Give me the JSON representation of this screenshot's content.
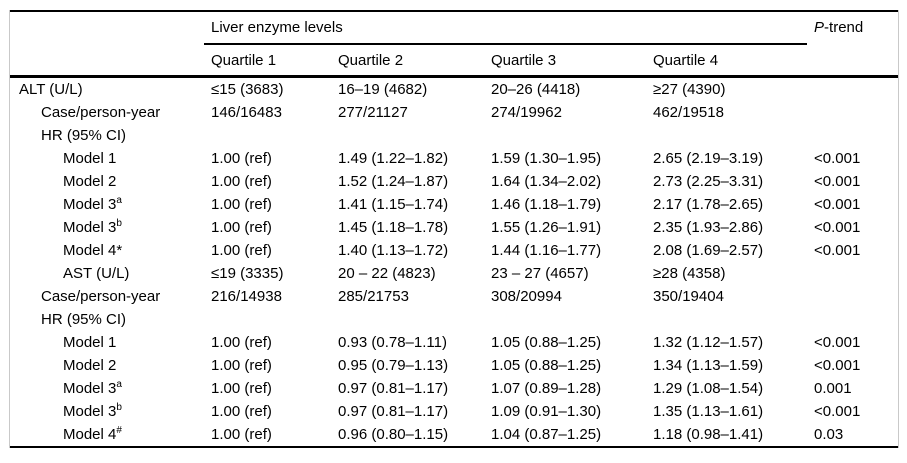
{
  "table": {
    "spanner_header": "Liver enzyme levels",
    "p_trend": {
      "italic": "P",
      "rest": "-trend"
    },
    "quartile_headers": [
      "Quartile 1",
      "Quartile 2",
      "Quartile 3",
      "Quartile 4"
    ],
    "rows": [
      {
        "indent": 0,
        "label": "ALT (U/L)",
        "q1": "≤15 (3683)",
        "q2": "16–19 (4682)",
        "q3": "20–26 (4418)",
        "q4": "≥27 (4390)",
        "p": ""
      },
      {
        "indent": 1,
        "label": "Case/person-year",
        "q1": "146/16483",
        "q2": "277/21127",
        "q3": "274/19962",
        "q4": "462/19518",
        "p": ""
      },
      {
        "indent": 1,
        "label": "HR (95% CI)",
        "q1": "",
        "q2": "",
        "q3": "",
        "q4": "",
        "p": ""
      },
      {
        "indent": 2,
        "label": "Model 1",
        "q1": "1.00 (ref)",
        "q2": "1.49 (1.22–1.82)",
        "q3": "1.59 (1.30–1.95)",
        "q4": "2.65 (2.19–3.19)",
        "p": "<0.001"
      },
      {
        "indent": 2,
        "label": "Model 2",
        "q1": "1.00 (ref)",
        "q2": "1.52 (1.24–1.87)",
        "q3": "1.64 (1.34–2.02)",
        "q4": "2.73 (2.25–3.31)",
        "p": "<0.001"
      },
      {
        "indent": 2,
        "label": "Model 3",
        "sup": "a",
        "q1": "1.00 (ref)",
        "q2": "1.41 (1.15–1.74)",
        "q3": "1.46 (1.18–1.79)",
        "q4": "2.17 (1.78–2.65)",
        "p": "<0.001"
      },
      {
        "indent": 2,
        "label": "Model 3",
        "sup": "b",
        "q1": "1.00 (ref)",
        "q2": "1.45 (1.18–1.78)",
        "q3": "1.55 (1.26–1.91)",
        "q4": "2.35 (1.93–2.86)",
        "p": "<0.001"
      },
      {
        "indent": 2,
        "label": "Model 4*",
        "q1": "1.00 (ref)",
        "q2": "1.40 (1.13–1.72)",
        "q3": "1.44 (1.16–1.77)",
        "q4": "2.08 (1.69–2.57)",
        "p": "<0.001"
      },
      {
        "indent": 2,
        "label": "AST (U/L)",
        "q1": "≤19 (3335)",
        "q2": "20 – 22 (4823)",
        "q3": "23 – 27 (4657)",
        "q4": "≥28 (4358)",
        "p": ""
      },
      {
        "indent": 1,
        "label": "Case/person-year",
        "q1": "216/14938",
        "q2": "285/21753",
        "q3": "308/20994",
        "q4": "350/19404",
        "p": ""
      },
      {
        "indent": 1,
        "label": "HR (95% CI)",
        "q1": "",
        "q2": "",
        "q3": "",
        "q4": "",
        "p": ""
      },
      {
        "indent": 2,
        "label": "Model 1",
        "q1": "1.00 (ref)",
        "q2": "0.93 (0.78–1.11)",
        "q3": "1.05 (0.88–1.25)",
        "q4": "1.32 (1.12–1.57)",
        "p": "<0.001"
      },
      {
        "indent": 2,
        "label": "Model 2",
        "q1": "1.00 (ref)",
        "q2": "0.95 (0.79–1.13)",
        "q3": "1.05 (0.88–1.25)",
        "q4": "1.34 (1.13–1.59)",
        "p": "<0.001"
      },
      {
        "indent": 2,
        "label": "Model 3",
        "sup": "a",
        "q1": "1.00 (ref)",
        "q2": "0.97 (0.81–1.17)",
        "q3": "1.07 (0.89–1.28)",
        "q4": "1.29 (1.08–1.54)",
        "p": "0.001"
      },
      {
        "indent": 2,
        "label": "Model 3",
        "sup": "b",
        "q1": "1.00 (ref)",
        "q2": "0.97 (0.81–1.17)",
        "q3": "1.09 (0.91–1.30)",
        "q4": "1.35 (1.13–1.61)",
        "p": "<0.001"
      },
      {
        "indent": 2,
        "label": "Model 4",
        "sup": "#",
        "q1": "1.00 (ref)",
        "q2": "0.96 (0.80–1.15)",
        "q3": "1.04 (0.87–1.25)",
        "q4": "1.18 (0.98–1.41)",
        "p": "0.03"
      }
    ]
  },
  "colors": {
    "text": "#000000",
    "rule": "#000000",
    "frame": "#c9c9c9",
    "background": "#ffffff"
  }
}
